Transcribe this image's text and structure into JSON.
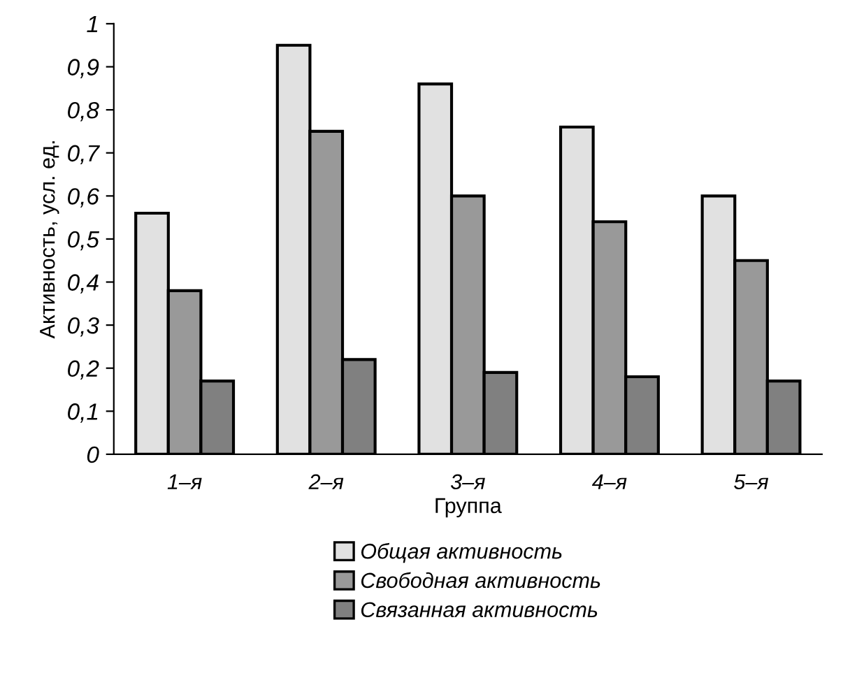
{
  "chart_data": {
    "type": "bar",
    "xlabel": "Группа",
    "ylabel": "Активность, усл. ед.",
    "categories": [
      "1–я",
      "2–я",
      "3–я",
      "4–я",
      "5–я"
    ],
    "series": [
      {
        "name": "Общая активность",
        "color": "#e1e1e1",
        "values": [
          0.56,
          0.95,
          0.86,
          0.76,
          0.6
        ]
      },
      {
        "name": "Свободная активность",
        "color": "#999999",
        "values": [
          0.38,
          0.75,
          0.6,
          0.54,
          0.45
        ]
      },
      {
        "name": "Связанная активность",
        "color": "#808080",
        "values": [
          0.17,
          0.22,
          0.19,
          0.18,
          0.17
        ]
      }
    ],
    "ylim": [
      0,
      1
    ],
    "yticks": [
      0,
      {
        "value": 0.1,
        "label": "0,1"
      },
      {
        "value": 0.2,
        "label": "0,2"
      },
      {
        "value": 0.3,
        "label": "0,3"
      },
      {
        "value": 0.4,
        "label": "0,4"
      },
      {
        "value": 0.5,
        "label": "0,5"
      },
      {
        "value": 0.6,
        "label": "0,6"
      },
      {
        "value": 0.7,
        "label": "0,7"
      },
      {
        "value": 0.8,
        "label": "0,8"
      },
      {
        "value": 0.9,
        "label": "0,9"
      },
      1
    ],
    "grid": false,
    "legend": "bottom"
  }
}
